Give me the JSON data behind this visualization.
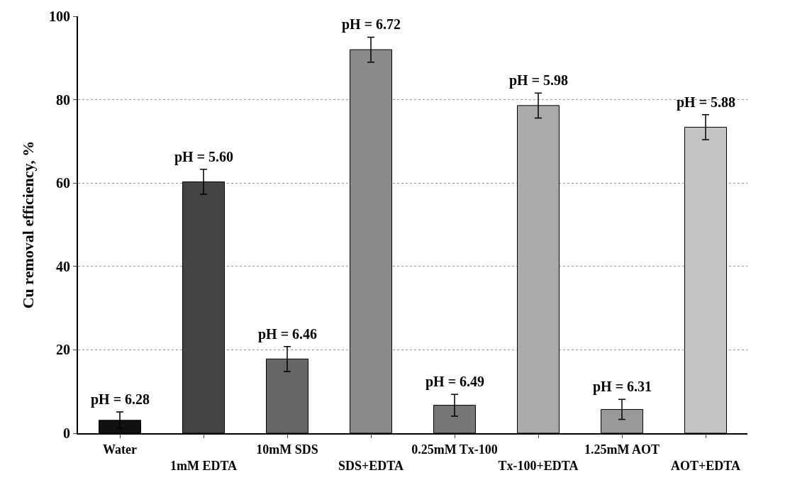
{
  "chart_data": {
    "type": "bar",
    "ylabel": "Cu removal efficiency, %",
    "categories": [
      "Water",
      "1mM EDTA",
      "10mM SDS",
      "SDS+EDTA",
      "0.25mM Tx-100",
      "Tx-100+EDTA",
      "1.25mM AOT",
      "AOT+EDTA"
    ],
    "values": [
      3.1,
      60.3,
      17.8,
      92,
      6.7,
      78.6,
      5.7,
      73.4
    ],
    "errors": [
      2,
      3,
      3,
      3,
      2.6,
      3,
      2.4,
      3
    ],
    "colors": [
      "#111111",
      "#444444",
      "#666666",
      "#8a8a8a",
      "#777777",
      "#aaaaaa",
      "#999999",
      "#c4c4c4"
    ],
    "ylim": [
      0,
      100
    ],
    "yticks": [
      0,
      20,
      40,
      60,
      80,
      100
    ],
    "grid": "y",
    "annotations": [
      {
        "text": "pH = 6.28",
        "x": "Water",
        "y": 5.1
      },
      {
        "text": "pH = 5.60",
        "x": "1mM EDTA",
        "y": 63.3
      },
      {
        "text": "pH = 6.46",
        "x": "10mM SDS",
        "y": 20.8
      },
      {
        "text": "pH = 6.72",
        "x": "SDS+EDTA",
        "y": 95
      },
      {
        "text": "pH = 6.49",
        "x": "0.25mM Tx-100",
        "y": 9.3
      },
      {
        "text": "pH = 5.98",
        "x": "Tx-100+EDTA",
        "y": 81.6
      },
      {
        "text": "pH = 6.31",
        "x": "1.25mM AOT",
        "y": 8.1
      },
      {
        "text": "pH = 5.88",
        "x": "AOT+EDTA",
        "y": 76.4
      }
    ]
  }
}
